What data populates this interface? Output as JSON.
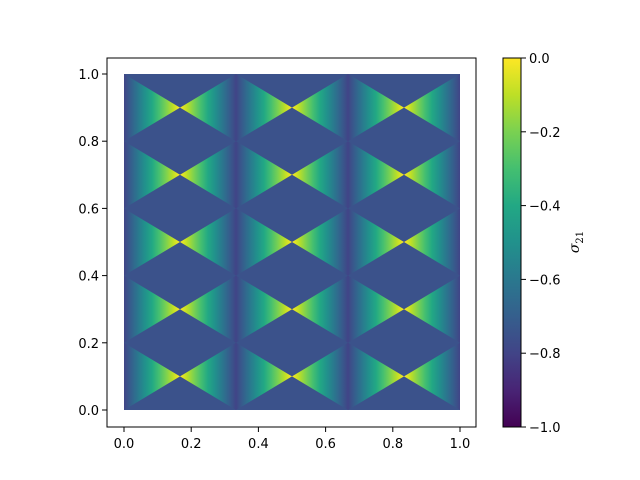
{
  "chart_data": {
    "type": "heatmap",
    "title": "",
    "xlabel": "",
    "ylabel": "",
    "xlim": [
      0.0,
      1.0
    ],
    "ylim": [
      0.0,
      1.0
    ],
    "x_ticks": [
      "0.0",
      "0.2",
      "0.4",
      "0.6",
      "0.8",
      "1.0"
    ],
    "y_ticks": [
      "0.0",
      "0.2",
      "0.4",
      "0.6",
      "0.8",
      "1.0"
    ],
    "field": {
      "description_of_pattern": "periodic triangular/diamond pattern; yellow (0) along vertical lines x=0, 1/3, 2/3, 1, fading to about -0.8 at diamond centers",
      "diamond_columns": 3,
      "diamond_rows": 5,
      "background_value": -0.8,
      "peak_value": 0.0
    },
    "colorbar": {
      "label": "σ",
      "label_subscript": "21",
      "min": -1.0,
      "max": 0.0,
      "ticks": [
        "0.0",
        "−0.2",
        "−0.4",
        "−0.6",
        "−0.8",
        "−1.0"
      ],
      "tick_values": [
        0.0,
        -0.2,
        -0.4,
        -0.6,
        -0.8,
        -1.0
      ],
      "colormap": "viridis"
    },
    "grid": false,
    "colors": {
      "viridis_low": "#440154",
      "viridis_mid": "#21918c",
      "viridis_high": "#fde725",
      "background": "#3b528b"
    }
  }
}
